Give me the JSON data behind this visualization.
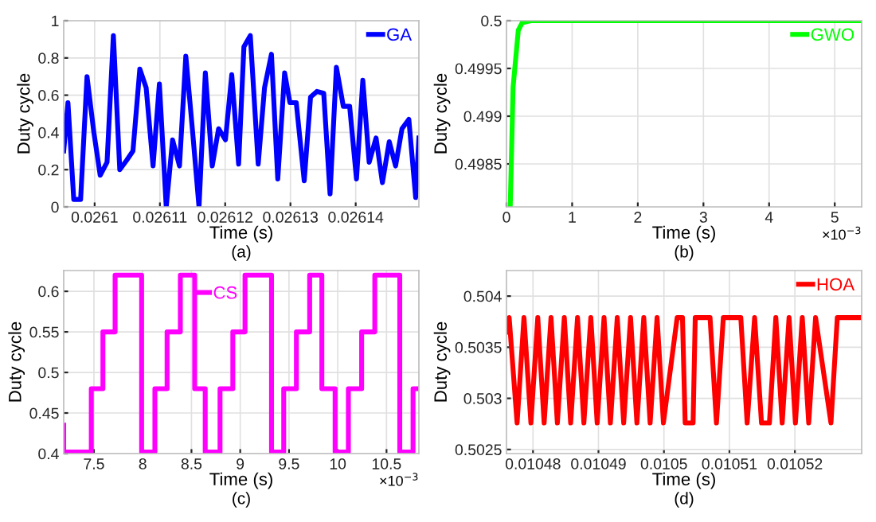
{
  "chart_data": [
    {
      "type": "line",
      "xlabel": "Time (s)",
      "ylabel": "Duty cycle",
      "annotations": [
        "(a)"
      ],
      "grid": true,
      "legend": "top right",
      "xlim": [
        0.02609526,
        0.02614968
      ],
      "ylim": [
        0,
        1
      ],
      "xticks": [
        0.0261,
        0.02611,
        0.02612,
        0.02613,
        0.02614
      ],
      "yticks": [
        0,
        0.2,
        0.4,
        0.6,
        0.8,
        1
      ],
      "series": [
        {
          "name": "GA",
          "color": "#0000ff",
          "x": [
            0.02609526,
            0.02609591,
            0.0260968,
            0.02609785,
            0.02609883,
            0.02609988,
            0.02610085,
            0.0261019,
            0.02610287,
            0.02610385,
            0.0261049,
            0.02610587,
            0.02610692,
            0.02610789,
            0.02610895,
            0.02610992,
            0.02611097,
            0.02611194,
            0.026113,
            0.02611397,
            0.02611502,
            0.02611599,
            0.02611696,
            0.02611802,
            0.02611899,
            0.02612004,
            0.02612101,
            0.02612206,
            0.02612287,
            0.02612385,
            0.02612506,
            0.02612603,
            0.02612709,
            0.02612806,
            0.02612911,
            0.02612992,
            0.02613089,
            0.02613211,
            0.02613308,
            0.02613405,
            0.0261351,
            0.02613607,
            0.02613704,
            0.0261381,
            0.02613907,
            0.02614012,
            0.02614109,
            0.02614206,
            0.02614312,
            0.02614409,
            0.02614514,
            0.02614611,
            0.02614709,
            0.02614814,
            0.02614919,
            0.02614968
          ],
          "values": [
            0.3,
            0.56,
            0.04,
            0.04,
            0.7,
            0.4,
            0.17,
            0.24,
            0.92,
            0.2,
            0.25,
            0.3,
            0.74,
            0.64,
            0.22,
            0.66,
            0.0,
            0.36,
            0.22,
            0.81,
            0.4,
            0.0,
            0.72,
            0.22,
            0.42,
            0.36,
            0.71,
            0.23,
            0.86,
            0.92,
            0.23,
            0.64,
            0.82,
            0.15,
            0.72,
            0.56,
            0.56,
            0.14,
            0.59,
            0.62,
            0.61,
            0.07,
            0.75,
            0.54,
            0.54,
            0.15,
            0.68,
            0.24,
            0.37,
            0.13,
            0.35,
            0.22,
            0.42,
            0.47,
            0.05,
            0.37
          ]
        }
      ]
    },
    {
      "type": "line",
      "xlabel": "Time (s)",
      "ylabel": "Duty cycle",
      "annotations": [
        "×10$^{−3}$",
        "(b)"
      ],
      "grid": true,
      "legend": "top right",
      "xlim": [
        0,
        5.41
      ],
      "ylim": [
        0.49805,
        0.5
      ],
      "xticks": [
        0,
        1,
        2,
        3,
        4,
        5
      ],
      "yticks": [
        0.4985,
        0.499,
        0.4995,
        0.5
      ],
      "series": [
        {
          "name": "GWO",
          "color": "#00ff00",
          "x": [
            0.057,
            0.08,
            0.1,
            0.14,
            0.18,
            0.24,
            0.37,
            5.41
          ],
          "values": [
            0.49805,
            0.4987,
            0.4993,
            0.4996,
            0.4999,
            0.49998,
            0.5,
            0.5
          ]
        }
      ]
    },
    {
      "type": "step",
      "xlabel": "Time (s)",
      "ylabel": "Duty cycle",
      "annotations": [
        "×10$^{−3}$",
        "(c)"
      ],
      "grid": true,
      "legend": "top",
      "xlim": [
        7.19,
        10.832
      ],
      "ylim": [
        0.4,
        0.6256
      ],
      "xticks": [
        7.5,
        8,
        8.5,
        9,
        9.5,
        10,
        10.5
      ],
      "yticks": [
        0.4,
        0.45,
        0.5,
        0.55,
        0.6
      ],
      "series": [
        {
          "name": "CS",
          "color": "#ff00ff",
          "x": [
            7.19,
            7.473,
            7.592,
            7.717,
            7.989,
            8.125,
            8.25,
            8.386,
            8.533,
            8.641,
            8.793,
            8.924,
            9.049,
            9.321,
            9.446,
            9.576,
            9.712,
            9.837,
            9.973,
            10.109,
            10.245,
            10.38,
            10.636,
            10.772,
            10.832
          ],
          "values": [
            0.435,
            0.402,
            0.48,
            0.55,
            0.62,
            0.402,
            0.48,
            0.55,
            0.62,
            0.48,
            0.402,
            0.48,
            0.55,
            0.62,
            0.402,
            0.48,
            0.55,
            0.62,
            0.48,
            0.402,
            0.48,
            0.55,
            0.62,
            0.402,
            0.48
          ]
        }
      ]
    },
    {
      "type": "line",
      "xlabel": "Time (s)",
      "ylabel": "Duty cycle",
      "annotations": [
        "(d)"
      ],
      "grid": true,
      "legend": "top right",
      "xlim": [
        0.01047595,
        0.0105302
      ],
      "ylim": [
        0.50246,
        0.50425
      ],
      "xticks": [
        0.01048,
        0.01049,
        0.0105,
        0.01051,
        0.01052
      ],
      "yticks": [
        0.5025,
        0.503,
        0.5035,
        0.504
      ],
      "series": [
        {
          "name": "HOA",
          "color": "#ff0000",
          "x": [
            0.01047595,
            0.01047636,
            0.01047757,
            0.01047862,
            0.01047968,
            0.01048073,
            0.0104817,
            0.01048275,
            0.01048372,
            0.01048478,
            0.01048575,
            0.0104868,
            0.01048777,
            0.01048883,
            0.0104898,
            0.01049085,
            0.01049182,
            0.01049287,
            0.01049385,
            0.0104949,
            0.01049587,
            0.01049692,
            0.01049789,
            0.01049895,
            0.01049992,
            0.01050202,
            0.01050283,
            0.01050324,
            0.01050445,
            0.01050478,
            0.01050704,
            0.01050802,
            0.01050907,
            0.01051174,
            0.01051271,
            0.01051385,
            0.0105149,
            0.01051611,
            0.01051709,
            0.01051806,
            0.01051911,
            0.01052008,
            0.01052113,
            0.01052211,
            0.01052316,
            0.01052551,
            0.01052648,
            0.0105302
          ],
          "values": [
            0.50365,
            0.50379,
            0.50276,
            0.50379,
            0.50276,
            0.50379,
            0.50276,
            0.50379,
            0.50276,
            0.50379,
            0.50276,
            0.50379,
            0.50276,
            0.50379,
            0.50276,
            0.50379,
            0.50276,
            0.50379,
            0.50276,
            0.50379,
            0.50276,
            0.50379,
            0.50276,
            0.50379,
            0.50276,
            0.50379,
            0.50379,
            0.50276,
            0.50276,
            0.50379,
            0.50379,
            0.50276,
            0.50379,
            0.50379,
            0.50276,
            0.50379,
            0.50276,
            0.50276,
            0.50379,
            0.50276,
            0.50379,
            0.50276,
            0.50379,
            0.50276,
            0.50379,
            0.50276,
            0.50379,
            0.50379
          ]
        }
      ]
    }
  ]
}
